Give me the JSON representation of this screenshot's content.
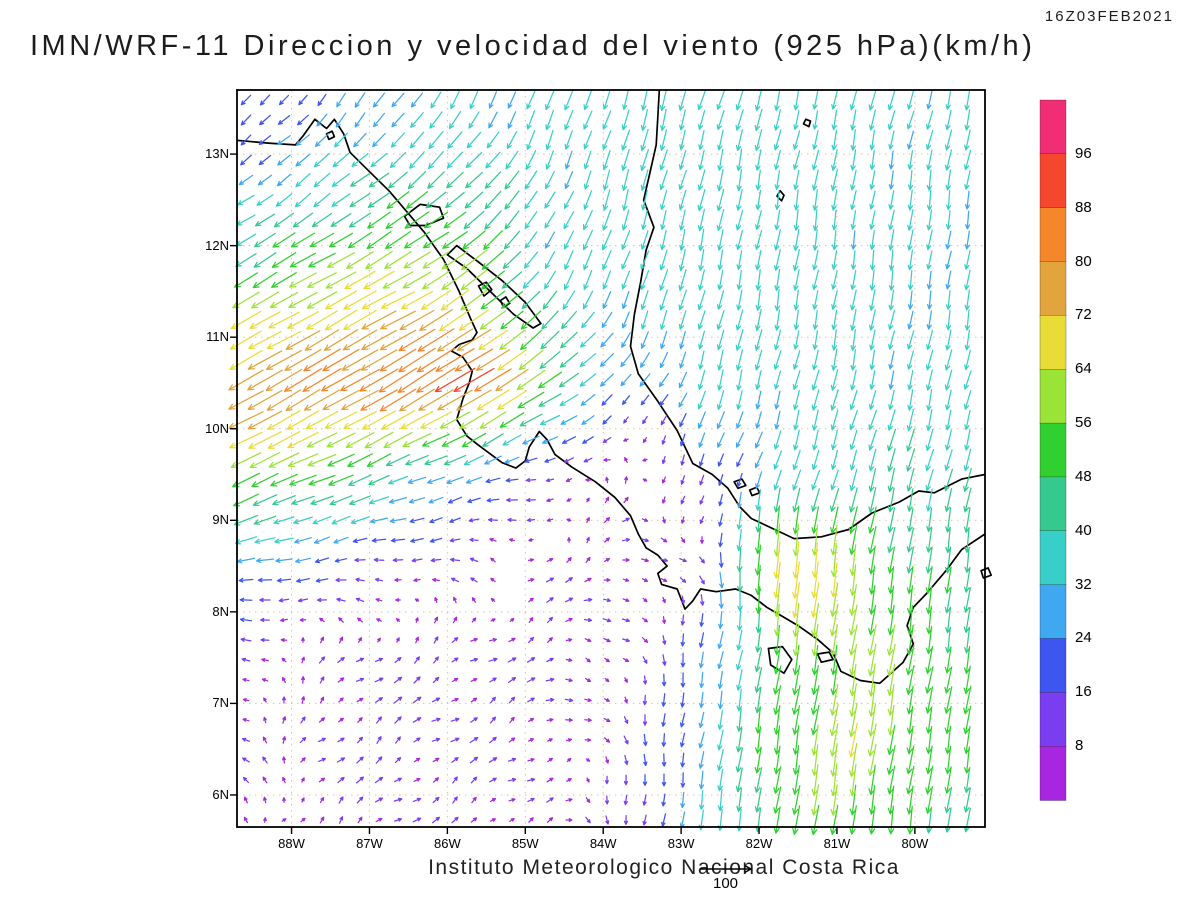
{
  "header": {
    "timestamp": "16Z03FEB2021"
  },
  "footer": {
    "credit": "Instituto Meteorologico Nacional Costa Rica"
  },
  "chart_data": {
    "type": "quiver",
    "title": "IMN/WRF-11 Direccion y velocidad del viento (925 hPa)(km/h)",
    "model": "IMN/WRF-11",
    "variable": "Direccion y velocidad del viento",
    "level": "925 hPa",
    "units": "km/h",
    "valid_time": "16Z03FEB2021",
    "lon_range": [
      -88.7,
      -79.1
    ],
    "lat_range": [
      5.65,
      13.7
    ],
    "x_axis": {
      "labels": [
        "88W",
        "87W",
        "86W",
        "85W",
        "84W",
        "83W",
        "82W",
        "81W",
        "80W"
      ],
      "values": [
        -88,
        -87,
        -86,
        -85,
        -84,
        -83,
        -82,
        -81,
        -80
      ]
    },
    "y_axis": {
      "labels": [
        "13N",
        "12N",
        "11N",
        "10N",
        "9N",
        "8N",
        "7N",
        "6N"
      ],
      "values": [
        13,
        12,
        11,
        10,
        9,
        8,
        7,
        6
      ]
    },
    "colorbar": {
      "labels": [
        96,
        88,
        80,
        72,
        64,
        56,
        48,
        40,
        32,
        24,
        16,
        8
      ],
      "colors_low_to_high": [
        "#a826e0",
        "#7b3df0",
        "#3d56f0",
        "#3fa8f0",
        "#38cfc8",
        "#34c98e",
        "#2fd02f",
        "#9ce337",
        "#e9dc36",
        "#e2a43c",
        "#f5872b",
        "#f5472e",
        "#f02d75"
      ]
    },
    "reference_vector": 100,
    "reference_vector_label": "100",
    "wind_grid": {
      "lons": [
        -88.7,
        -87.7,
        -86.7,
        -85.7,
        -84.7,
        -83.7,
        -82.7,
        -81.7,
        -80.7,
        -79.7
      ],
      "lats": [
        5.7,
        6.5,
        7.5,
        8.5,
        9.5,
        10.5,
        11.5,
        12.5,
        13.5
      ],
      "u": [
        [
          -6,
          5,
          7,
          7,
          5,
          0,
          -5,
          -8,
          -8,
          -6
        ],
        [
          -8,
          6,
          8,
          8,
          6,
          2,
          -5,
          -8,
          -10,
          -8
        ],
        [
          -10,
          5,
          8,
          8,
          8,
          5,
          -5,
          -8,
          -10,
          -8
        ],
        [
          -28,
          -20,
          -12,
          -8,
          6,
          8,
          5,
          -6,
          -8,
          -5
        ],
        [
          -55,
          -48,
          -38,
          -25,
          -12,
          3,
          -8,
          -10,
          -12,
          -10
        ],
        [
          -68,
          -72,
          -75,
          -78,
          -45,
          -15,
          -10,
          -8,
          -8,
          -8
        ],
        [
          -45,
          -55,
          -60,
          -50,
          -20,
          -12,
          -8,
          -6,
          -5,
          -5
        ],
        [
          -25,
          -30,
          -38,
          -35,
          -15,
          -10,
          -8,
          -6,
          -5,
          -5
        ],
        [
          -12,
          -15,
          -18,
          -15,
          -12,
          -10,
          -10,
          -8,
          -8,
          -8
        ]
      ],
      "v": [
        [
          3,
          5,
          5,
          5,
          3,
          -12,
          -32,
          -50,
          -55,
          -45
        ],
        [
          4,
          6,
          6,
          5,
          4,
          -10,
          -30,
          -55,
          -62,
          -48
        ],
        [
          3,
          5,
          6,
          5,
          3,
          -5,
          -25,
          -50,
          -60,
          -50
        ],
        [
          -5,
          -3,
          0,
          2,
          4,
          2,
          -8,
          -78,
          -55,
          -45
        ],
        [
          -25,
          -20,
          -15,
          -8,
          -2,
          5,
          -15,
          -30,
          -38,
          -40
        ],
        [
          -40,
          -42,
          -45,
          -48,
          -30,
          -15,
          -33,
          -34,
          -34,
          -33
        ],
        [
          -25,
          -30,
          -32,
          -35,
          -30,
          -33,
          -35,
          -35,
          -34,
          -33
        ],
        [
          -18,
          -22,
          -28,
          -30,
          -30,
          -35,
          -36,
          -35,
          -34,
          -33
        ],
        [
          -12,
          -18,
          -25,
          -28,
          -32,
          -35,
          -35,
          -35,
          -33,
          -33
        ]
      ]
    },
    "coastlines": {
      "open": [
        [
          [
            -88.7,
            13.15
          ],
          [
            -88.3,
            13.12
          ],
          [
            -87.95,
            13.1
          ],
          [
            -87.85,
            13.2
          ],
          [
            -87.7,
            13.38
          ],
          [
            -87.55,
            13.28
          ],
          [
            -87.45,
            13.38
          ],
          [
            -87.33,
            13.22
          ],
          [
            -87.25,
            13.02
          ],
          [
            -87.05,
            12.85
          ],
          [
            -86.75,
            12.6
          ],
          [
            -86.5,
            12.35
          ],
          [
            -86.3,
            12.15
          ],
          [
            -86.05,
            11.85
          ],
          [
            -85.85,
            11.5
          ],
          [
            -85.7,
            11.2
          ],
          [
            -85.62,
            11.05
          ],
          [
            -85.68,
            10.97
          ],
          [
            -85.85,
            10.92
          ],
          [
            -85.95,
            10.85
          ],
          [
            -85.8,
            10.78
          ],
          [
            -85.68,
            10.63
          ],
          [
            -85.72,
            10.5
          ],
          [
            -85.8,
            10.33
          ],
          [
            -85.88,
            10.1
          ],
          [
            -85.75,
            9.92
          ],
          [
            -85.6,
            9.82
          ],
          [
            -85.3,
            9.63
          ],
          [
            -85.12,
            9.57
          ],
          [
            -85.0,
            9.65
          ],
          [
            -84.95,
            9.8
          ],
          [
            -84.82,
            9.97
          ],
          [
            -84.72,
            9.88
          ],
          [
            -84.62,
            9.72
          ],
          [
            -84.4,
            9.58
          ],
          [
            -84.1,
            9.42
          ],
          [
            -83.85,
            9.25
          ],
          [
            -83.65,
            9.05
          ],
          [
            -83.55,
            8.85
          ],
          [
            -83.45,
            8.7
          ],
          [
            -83.3,
            8.62
          ],
          [
            -83.18,
            8.5
          ],
          [
            -83.3,
            8.42
          ],
          [
            -83.25,
            8.3
          ],
          [
            -83.05,
            8.25
          ],
          [
            -82.95,
            8.03
          ],
          [
            -82.85,
            8.12
          ],
          [
            -82.75,
            8.25
          ],
          [
            -82.55,
            8.22
          ],
          [
            -82.3,
            8.25
          ],
          [
            -82.1,
            8.18
          ],
          [
            -81.9,
            8.05
          ],
          [
            -81.7,
            7.95
          ],
          [
            -81.5,
            7.85
          ],
          [
            -81.25,
            7.7
          ],
          [
            -81.05,
            7.55
          ],
          [
            -80.95,
            7.35
          ],
          [
            -80.7,
            7.25
          ],
          [
            -80.45,
            7.22
          ],
          [
            -80.15,
            7.45
          ],
          [
            -80.02,
            7.65
          ],
          [
            -80.1,
            7.85
          ],
          [
            -80.02,
            8.05
          ],
          [
            -79.85,
            8.2
          ],
          [
            -79.6,
            8.45
          ],
          [
            -79.4,
            8.68
          ],
          [
            -79.1,
            8.85
          ]
        ],
        [
          [
            -79.1,
            9.5
          ],
          [
            -79.4,
            9.45
          ],
          [
            -79.75,
            9.3
          ],
          [
            -79.95,
            9.32
          ],
          [
            -80.2,
            9.2
          ],
          [
            -80.55,
            9.08
          ],
          [
            -80.85,
            8.9
          ],
          [
            -81.2,
            8.82
          ],
          [
            -81.55,
            8.8
          ],
          [
            -81.85,
            8.92
          ],
          [
            -82.1,
            9.02
          ],
          [
            -82.25,
            9.15
          ],
          [
            -82.4,
            9.35
          ],
          [
            -82.6,
            9.5
          ],
          [
            -82.85,
            9.62
          ],
          [
            -83.05,
            9.98
          ],
          [
            -83.3,
            10.3
          ],
          [
            -83.55,
            10.6
          ],
          [
            -83.65,
            10.9
          ],
          [
            -83.6,
            11.25
          ],
          [
            -83.52,
            11.6
          ],
          [
            -83.45,
            11.95
          ],
          [
            -83.35,
            12.2
          ],
          [
            -83.48,
            12.5
          ],
          [
            -83.4,
            12.8
          ],
          [
            -83.32,
            13.1
          ],
          [
            -83.3,
            13.4
          ],
          [
            -83.28,
            13.7
          ]
        ]
      ],
      "closed": [
        [
          [
            -86.0,
            11.9
          ],
          [
            -85.75,
            11.75
          ],
          [
            -85.45,
            11.5
          ],
          [
            -85.15,
            11.25
          ],
          [
            -84.9,
            11.1
          ],
          [
            -84.8,
            11.15
          ],
          [
            -85.0,
            11.38
          ],
          [
            -85.3,
            11.62
          ],
          [
            -85.6,
            11.82
          ],
          [
            -85.88,
            12.0
          ]
        ],
        [
          [
            -86.55,
            12.32
          ],
          [
            -86.35,
            12.45
          ],
          [
            -86.1,
            12.42
          ],
          [
            -86.05,
            12.3
          ],
          [
            -86.28,
            12.22
          ],
          [
            -86.48,
            12.22
          ]
        ],
        [
          [
            -85.6,
            11.56
          ],
          [
            -85.5,
            11.6
          ],
          [
            -85.43,
            11.52
          ],
          [
            -85.53,
            11.45
          ]
        ],
        [
          [
            -85.32,
            11.4
          ],
          [
            -85.25,
            11.44
          ],
          [
            -85.2,
            11.37
          ],
          [
            -85.28,
            11.33
          ]
        ],
        [
          [
            -81.88,
            7.6
          ],
          [
            -81.7,
            7.62
          ],
          [
            -81.58,
            7.48
          ],
          [
            -81.68,
            7.33
          ],
          [
            -81.85,
            7.42
          ]
        ],
        [
          [
            -81.25,
            7.54
          ],
          [
            -81.1,
            7.56
          ],
          [
            -81.05,
            7.48
          ],
          [
            -81.2,
            7.45
          ]
        ],
        [
          [
            -81.73,
            12.6
          ],
          [
            -81.68,
            12.55
          ],
          [
            -81.71,
            12.49
          ],
          [
            -81.77,
            12.54
          ]
        ],
        [
          [
            -81.4,
            13.38
          ],
          [
            -81.34,
            13.36
          ],
          [
            -81.36,
            13.3
          ],
          [
            -81.43,
            13.33
          ]
        ],
        [
          [
            -82.32,
            9.42
          ],
          [
            -82.22,
            9.45
          ],
          [
            -82.17,
            9.38
          ],
          [
            -82.27,
            9.35
          ]
        ],
        [
          [
            -82.12,
            9.33
          ],
          [
            -82.03,
            9.36
          ],
          [
            -81.99,
            9.3
          ],
          [
            -82.09,
            9.27
          ]
        ],
        [
          [
            -87.55,
            13.22
          ],
          [
            -87.48,
            13.25
          ],
          [
            -87.45,
            13.19
          ],
          [
            -87.52,
            13.16
          ]
        ],
        [
          [
            -79.15,
            8.45
          ],
          [
            -79.06,
            8.48
          ],
          [
            -79.02,
            8.4
          ],
          [
            -79.12,
            8.37
          ]
        ]
      ]
    }
  }
}
